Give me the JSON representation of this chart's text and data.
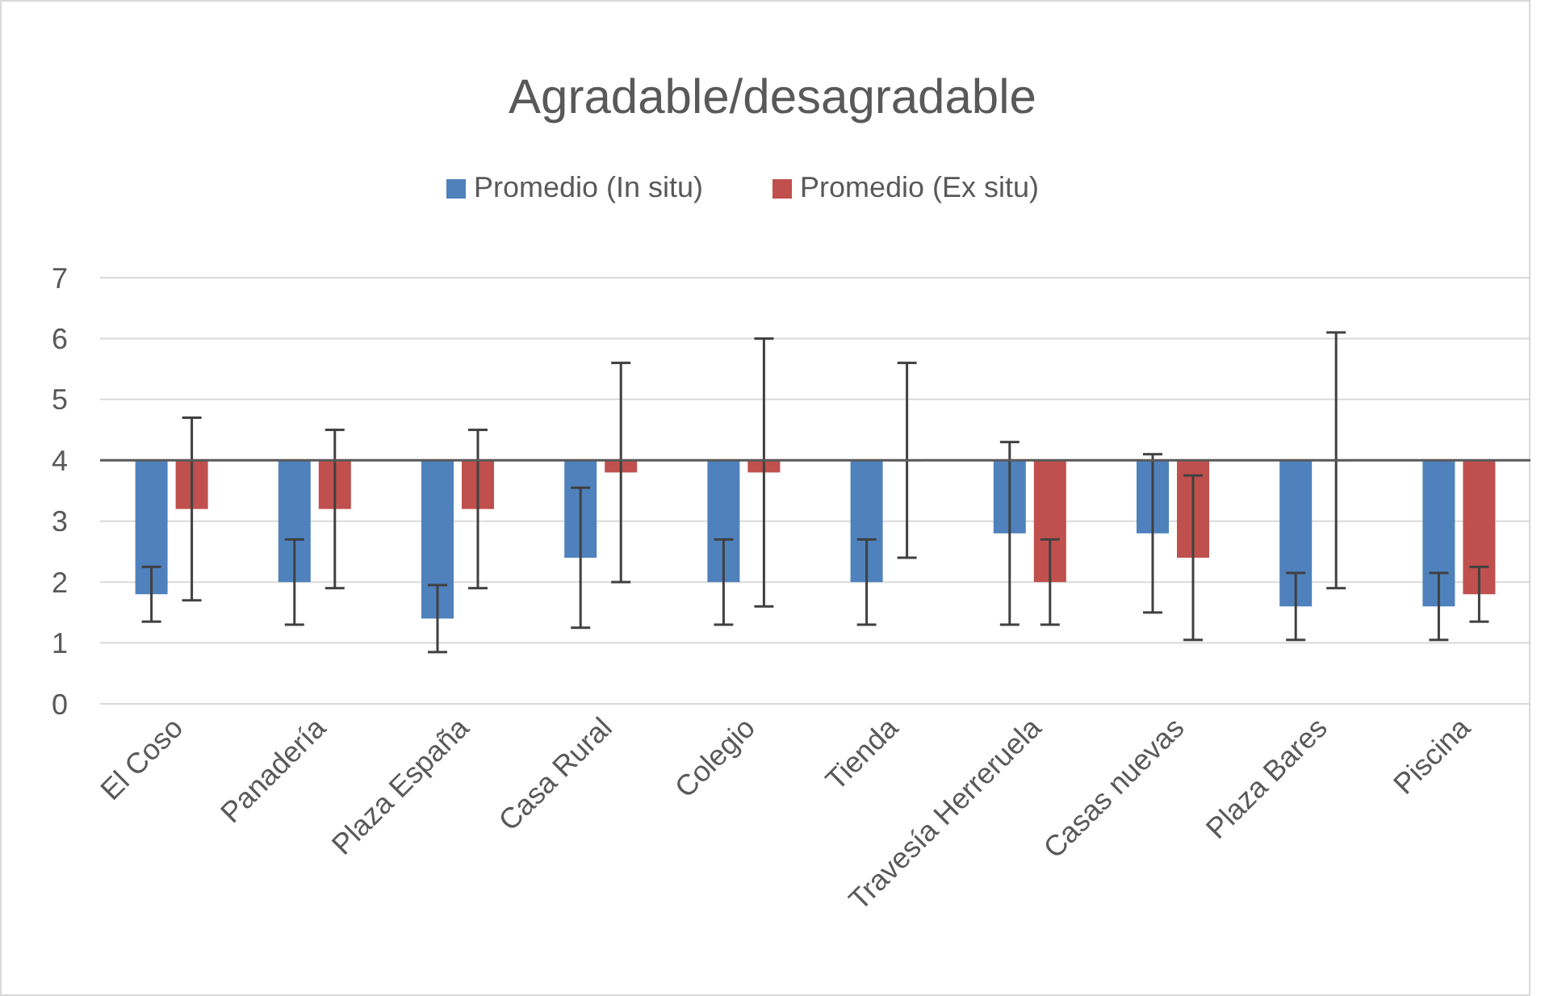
{
  "chart_data": {
    "type": "bar",
    "title": "Agradable/desagradable",
    "categories": [
      "El Coso",
      "Panadería",
      "Plaza España",
      "Casa Rural",
      "Colegio",
      "Tienda",
      "Travesía Herreruela",
      "Casas nuevas",
      "Plaza Bares",
      "Piscina"
    ],
    "series": [
      {
        "name": "Promedio (In situ)",
        "color": "#4f81bd",
        "base": [
          4,
          4,
          4,
          4,
          4,
          4,
          4,
          4,
          4,
          4
        ],
        "values": [
          -2.2,
          -2,
          -2.6,
          -1.6,
          -2,
          -2,
          -1.2,
          -1.2,
          -2.4,
          -2.4
        ],
        "errors": [
          0.45,
          0.7,
          0.55,
          1.15,
          0.7,
          0.7,
          1.5,
          1.3,
          0.55,
          0.55
        ]
      },
      {
        "name": "Promedio (Ex situ)",
        "color": "#c0504d",
        "base": [
          4,
          4,
          4,
          4,
          4,
          4,
          4,
          4,
          4,
          4
        ],
        "values": [
          -0.8,
          -0.8,
          -0.8,
          -0.2,
          -0.2,
          0,
          -2,
          -1.6,
          0,
          -2.2
        ],
        "errors": [
          1.5,
          1.3,
          1.3,
          1.8,
          2.2,
          1.6,
          0.7,
          1.35,
          2.1,
          0.45
        ]
      }
    ],
    "ylim": [
      0,
      7
    ],
    "yticks": [
      0,
      1,
      2,
      3,
      4,
      5,
      6,
      7
    ],
    "grid": "y",
    "legend": "top",
    "ref_lines": [
      {
        "axis": "y",
        "value": 4,
        "color": "#595959"
      }
    ]
  }
}
